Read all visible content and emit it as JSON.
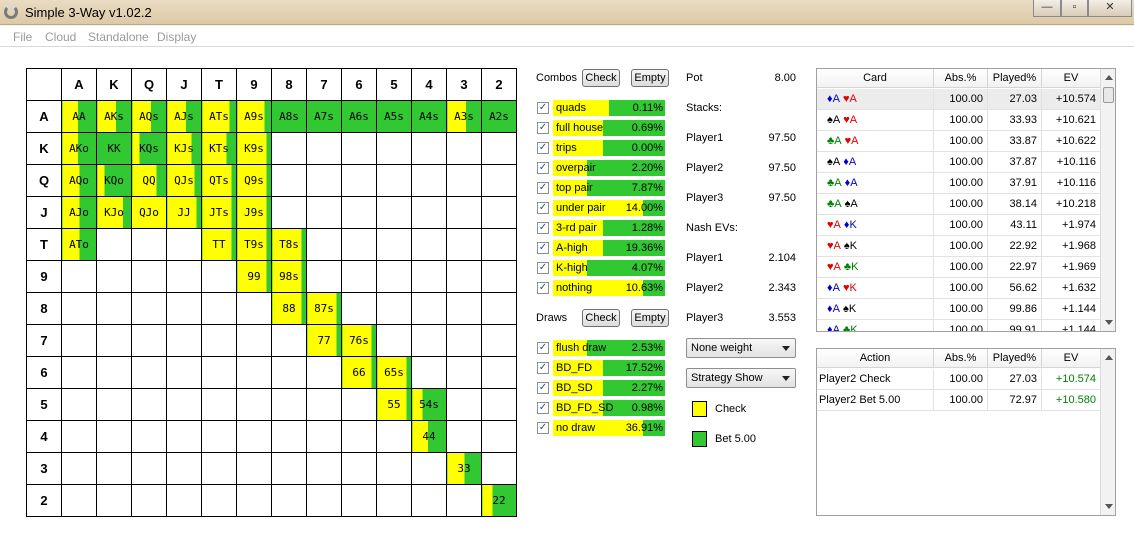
{
  "window": {
    "title": "Simple 3-Way v1.02.2"
  },
  "menu": [
    "File",
    "Cloud",
    "Standalone",
    "Display"
  ],
  "colors": {
    "check": "#ffff00",
    "bet": "#32c832"
  },
  "grid": {
    "ranks": [
      "A",
      "K",
      "Q",
      "J",
      "T",
      "9",
      "8",
      "7",
      "6",
      "5",
      "4",
      "3",
      "2"
    ],
    "cells": [
      {
        "r": 0,
        "c": 0,
        "label": "AA",
        "bet": 0.55
      },
      {
        "r": 0,
        "c": 1,
        "label": "AKs",
        "bet": 0.45
      },
      {
        "r": 0,
        "c": 2,
        "label": "AQs",
        "bet": 0.45
      },
      {
        "r": 0,
        "c": 3,
        "label": "AJs",
        "bet": 0.45
      },
      {
        "r": 0,
        "c": 4,
        "label": "ATs",
        "bet": 0.2
      },
      {
        "r": 0,
        "c": 5,
        "label": "A9s",
        "bet": 0.2
      },
      {
        "r": 0,
        "c": 6,
        "label": "A8s",
        "bet": 1.0
      },
      {
        "r": 0,
        "c": 7,
        "label": "A7s",
        "bet": 1.0
      },
      {
        "r": 0,
        "c": 8,
        "label": "A6s",
        "bet": 1.0
      },
      {
        "r": 0,
        "c": 9,
        "label": "A5s",
        "bet": 1.0
      },
      {
        "r": 0,
        "c": 10,
        "label": "A4s",
        "bet": 1.0
      },
      {
        "r": 0,
        "c": 11,
        "label": "A3s",
        "bet": 0.45
      },
      {
        "r": 0,
        "c": 12,
        "label": "A2s",
        "bet": 1.0
      },
      {
        "r": 1,
        "c": 0,
        "label": "AKo",
        "bet": 0.55
      },
      {
        "r": 1,
        "c": 1,
        "label": "KK",
        "bet": 1.0
      },
      {
        "r": 1,
        "c": 2,
        "label": "KQs",
        "bet": 0.8
      },
      {
        "r": 1,
        "c": 3,
        "label": "KJs",
        "bet": 0.3
      },
      {
        "r": 1,
        "c": 4,
        "label": "KTs",
        "bet": 0.3
      },
      {
        "r": 1,
        "c": 5,
        "label": "K9s",
        "bet": 0.15
      },
      {
        "r": 2,
        "c": 0,
        "label": "AQo",
        "bet": 0.5
      },
      {
        "r": 2,
        "c": 1,
        "label": "KQo",
        "bet": 0.8
      },
      {
        "r": 2,
        "c": 2,
        "label": "QQ",
        "bet": 0.3
      },
      {
        "r": 2,
        "c": 3,
        "label": "QJs",
        "bet": 0.2
      },
      {
        "r": 2,
        "c": 4,
        "label": "QTs",
        "bet": 0.15
      },
      {
        "r": 2,
        "c": 5,
        "label": "Q9s",
        "bet": 0.15
      },
      {
        "r": 3,
        "c": 0,
        "label": "AJo",
        "bet": 0.5
      },
      {
        "r": 3,
        "c": 1,
        "label": "KJo",
        "bet": 0.25
      },
      {
        "r": 3,
        "c": 2,
        "label": "QJo",
        "bet": 0.0
      },
      {
        "r": 3,
        "c": 3,
        "label": "JJ",
        "bet": 0.15
      },
      {
        "r": 3,
        "c": 4,
        "label": "JTs",
        "bet": 0.15
      },
      {
        "r": 3,
        "c": 5,
        "label": "J9s",
        "bet": 0.15
      },
      {
        "r": 4,
        "c": 0,
        "label": "ATo",
        "bet": 0.5
      },
      {
        "r": 4,
        "c": 4,
        "label": "TT",
        "bet": 0.15
      },
      {
        "r": 4,
        "c": 5,
        "label": "T9s",
        "bet": 0.15
      },
      {
        "r": 4,
        "c": 6,
        "label": "T8s",
        "bet": 0.15
      },
      {
        "r": 5,
        "c": 5,
        "label": "99",
        "bet": 0.15
      },
      {
        "r": 5,
        "c": 6,
        "label": "98s",
        "bet": 0.15
      },
      {
        "r": 6,
        "c": 6,
        "label": "88",
        "bet": 0.15
      },
      {
        "r": 6,
        "c": 7,
        "label": "87s",
        "bet": 0.15
      },
      {
        "r": 7,
        "c": 7,
        "label": "77",
        "bet": 0.15
      },
      {
        "r": 7,
        "c": 8,
        "label": "76s",
        "bet": 0.15
      },
      {
        "r": 8,
        "c": 8,
        "label": "66",
        "bet": 0.15
      },
      {
        "r": 8,
        "c": 9,
        "label": "65s",
        "bet": 0.15
      },
      {
        "r": 9,
        "c": 9,
        "label": "55",
        "bet": 0.15
      },
      {
        "r": 9,
        "c": 10,
        "label": "54s",
        "bet": 0.7
      },
      {
        "r": 10,
        "c": 10,
        "label": "44",
        "bet": 0.55
      },
      {
        "r": 11,
        "c": 11,
        "label": "33",
        "bet": 0.5
      },
      {
        "r": 12,
        "c": 12,
        "label": "22",
        "bet": 0.7
      }
    ]
  },
  "combos": {
    "label": "Combos",
    "check_btn": "Check",
    "empty_btn": "Empty",
    "rows": [
      {
        "label": "quads",
        "pct": "0.11%",
        "bet": 0.5
      },
      {
        "label": "full house",
        "pct": "0.69%",
        "bet": 0.55
      },
      {
        "label": "trips",
        "pct": "0.00%",
        "bet": 0.55
      },
      {
        "label": "overpair",
        "pct": "2.20%",
        "bet": 0.7
      },
      {
        "label": "top pair",
        "pct": "7.87%",
        "bet": 0.7
      },
      {
        "label": "under pair",
        "pct": "14.00%",
        "bet": 0.2
      },
      {
        "label": "3-rd pair",
        "pct": "1.28%",
        "bet": 0.55
      },
      {
        "label": "A-high",
        "pct": "19.36%",
        "bet": 0.55
      },
      {
        "label": "K-high",
        "pct": "4.07%",
        "bet": 0.7
      },
      {
        "label": "nothing",
        "pct": "10.63%",
        "bet": 0.2
      }
    ]
  },
  "draws": {
    "label": "Draws",
    "check_btn": "Check",
    "empty_btn": "Empty",
    "rows": [
      {
        "label": "flush draw",
        "pct": "2.53%",
        "bet": 0.7
      },
      {
        "label": "BD_FD",
        "pct": "17.52%",
        "bet": 0.55
      },
      {
        "label": "BD_SD",
        "pct": "2.27%",
        "bet": 0.55
      },
      {
        "label": "BD_FD_SD",
        "pct": "0.98%",
        "bet": 0.55
      },
      {
        "label": "no draw",
        "pct": "36.91%",
        "bet": 0.2
      }
    ]
  },
  "info": {
    "pot_label": "Pot",
    "pot": "8.00",
    "stacks_label": "Stacks:",
    "stacks": [
      {
        "name": "Player1",
        "val": "97.50"
      },
      {
        "name": "Player2",
        "val": "97.50"
      },
      {
        "name": "Player3",
        "val": "97.50"
      }
    ],
    "nash_label": "Nash EVs:",
    "nash": [
      {
        "name": "Player1",
        "val": "2.104"
      },
      {
        "name": "Player2",
        "val": "2.343"
      },
      {
        "name": "Player3",
        "val": "3.553"
      }
    ],
    "weight_select": "None weight",
    "strategy_select": "Strategy Show",
    "legend_check": "Check",
    "legend_bet": "Bet 5.00"
  },
  "card_table": {
    "headers": [
      "Card",
      "Abs.%",
      "Played%",
      "EV"
    ],
    "rows": [
      {
        "c1": "A",
        "s1": "♦",
        "k1": "blu",
        "c2": "A",
        "s2": "♥",
        "k2": "red",
        "abs": "100.00",
        "played": "27.03",
        "ev": "+10.574"
      },
      {
        "c1": "A",
        "s1": "♠",
        "k1": "blk",
        "c2": "A",
        "s2": "♥",
        "k2": "red",
        "abs": "100.00",
        "played": "33.93",
        "ev": "+10.621"
      },
      {
        "c1": "A",
        "s1": "♣",
        "k1": "grn",
        "c2": "A",
        "s2": "♥",
        "k2": "red",
        "abs": "100.00",
        "played": "33.87",
        "ev": "+10.622"
      },
      {
        "c1": "A",
        "s1": "♠",
        "k1": "blk",
        "c2": "A",
        "s2": "♦",
        "k2": "blu",
        "abs": "100.00",
        "played": "37.87",
        "ev": "+10.116"
      },
      {
        "c1": "A",
        "s1": "♣",
        "k1": "grn",
        "c2": "A",
        "s2": "♦",
        "k2": "blu",
        "abs": "100.00",
        "played": "37.91",
        "ev": "+10.116"
      },
      {
        "c1": "A",
        "s1": "♣",
        "k1": "grn",
        "c2": "A",
        "s2": "♠",
        "k2": "blk",
        "abs": "100.00",
        "played": "38.14",
        "ev": "+10.218"
      },
      {
        "c1": "A",
        "s1": "♥",
        "k1": "red",
        "c2": "K",
        "s2": "♦",
        "k2": "blu",
        "abs": "100.00",
        "played": "43.11",
        "ev": "+1.974"
      },
      {
        "c1": "A",
        "s1": "♥",
        "k1": "red",
        "c2": "K",
        "s2": "♠",
        "k2": "blk",
        "abs": "100.00",
        "played": "22.92",
        "ev": "+1.968"
      },
      {
        "c1": "A",
        "s1": "♥",
        "k1": "red",
        "c2": "K",
        "s2": "♣",
        "k2": "grn",
        "abs": "100.00",
        "played": "22.97",
        "ev": "+1.969"
      },
      {
        "c1": "A",
        "s1": "♦",
        "k1": "blu",
        "c2": "K",
        "s2": "♥",
        "k2": "red",
        "abs": "100.00",
        "played": "56.62",
        "ev": "+1.632"
      },
      {
        "c1": "A",
        "s1": "♦",
        "k1": "blu",
        "c2": "K",
        "s2": "♠",
        "k2": "blk",
        "abs": "100.00",
        "played": "99.86",
        "ev": "+1.144"
      },
      {
        "c1": "A",
        "s1": "♦",
        "k1": "blu",
        "c2": "K",
        "s2": "♣",
        "k2": "grn",
        "abs": "100.00",
        "played": "99.91",
        "ev": "+1.144"
      }
    ]
  },
  "action_table": {
    "headers": [
      "Action",
      "Abs.%",
      "Played%",
      "EV"
    ],
    "rows": [
      {
        "action": "Player2 Check",
        "abs": "100.00",
        "played": "27.03",
        "ev": "+10.574"
      },
      {
        "action": "Player2 Bet 5.00",
        "abs": "100.00",
        "played": "72.97",
        "ev": "+10.580"
      }
    ]
  }
}
